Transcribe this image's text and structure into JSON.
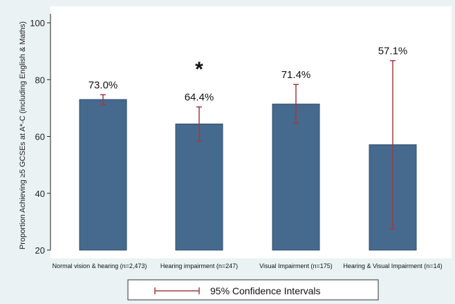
{
  "chart_data": {
    "type": "bar",
    "ylabel": "Proportion Achieving ≥5 GCSEs at A*-C (including English & Maths)",
    "xlabel": "",
    "ylim": [
      20,
      100
    ],
    "yticks": [
      20,
      40,
      60,
      80,
      100
    ],
    "grid": false,
    "categories": [
      "Normal vision & hearing (n=2,473)",
      "Hearing impairment (n=247)",
      "Visual Impairment (n=175)",
      "Hearing & Visual Impairment (n=14)"
    ],
    "values": [
      73.0,
      64.4,
      71.4,
      57.1
    ],
    "value_labels": [
      "73.0%",
      "64.4%",
      "71.4%",
      "57.1%"
    ],
    "ci_lower": [
      71.2,
      58.4,
      64.7,
      27.5
    ],
    "ci_upper": [
      74.7,
      70.4,
      78.3,
      86.7
    ],
    "annotations": [
      {
        "category_index": 1,
        "text": "*"
      }
    ],
    "legend": {
      "position": "bottom",
      "entries": [
        "95% Confidence Intervals"
      ]
    },
    "colors": {
      "bar": "#456a8e",
      "bar_stroke": "#2f4d6b",
      "error_bar": "#a13b3f",
      "plot_background": "#ffffff",
      "page_background": "#eaf2f3"
    }
  }
}
